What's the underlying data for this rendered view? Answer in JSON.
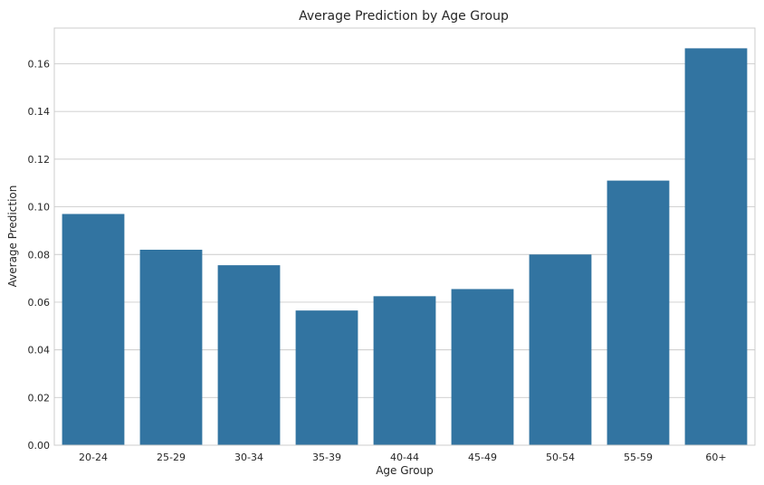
{
  "chart_data": {
    "type": "bar",
    "title": "Average Prediction by Age Group",
    "xlabel": "Age Group",
    "ylabel": "Average Prediction",
    "categories": [
      "20-24",
      "25-29",
      "30-34",
      "35-39",
      "40-44",
      "45-49",
      "50-54",
      "55-59",
      "60+"
    ],
    "values": [
      0.097,
      0.082,
      0.0755,
      0.0565,
      0.0625,
      0.0655,
      0.08,
      0.111,
      0.1665
    ],
    "ylim": [
      0,
      0.175
    ],
    "yticks": [
      "0.00",
      "0.02",
      "0.04",
      "0.06",
      "0.08",
      "0.10",
      "0.12",
      "0.14",
      "0.16"
    ],
    "bar_color": "#3274a1",
    "grid": true
  }
}
